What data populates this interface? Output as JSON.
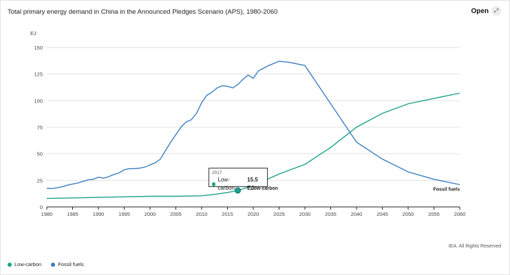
{
  "header": {
    "title": "Total primary energy demand in China in the Announced Pledges Scenario (APS), 1980-2060",
    "open_label": "Open",
    "open_icon": "expand-arrows-icon"
  },
  "footer": {
    "credit": "IEA. All Rights Reserved"
  },
  "legend": [
    {
      "label": "Low-carbon",
      "color": "#1aa18d"
    },
    {
      "label": "Fossil fuels",
      "color": "#3a7ec0"
    }
  ],
  "tooltip": {
    "year": "2017",
    "series": "Low-carbon",
    "value": "15.5 EJ"
  },
  "chart_data": {
    "type": "line",
    "title": "Total primary energy demand in China in the Announced Pledges Scenario (APS), 1980-2060",
    "ylabel": "EJ",
    "xlabel": "",
    "ylim": [
      0,
      150
    ],
    "xlim": [
      1980,
      2060
    ],
    "yticks": [
      0,
      25,
      50,
      75,
      100,
      125,
      150
    ],
    "xticks": [
      1980,
      1985,
      1990,
      1995,
      2000,
      2005,
      2010,
      2015,
      2020,
      2025,
      2030,
      2035,
      2040,
      2045,
      2050,
      2055,
      2060
    ],
    "grid": "horizontal",
    "legend_position": "bottom-left",
    "series": [
      {
        "name": "Low-carbon",
        "color": "#1aa18d",
        "end_label": "Low-carbon",
        "points": [
          [
            1980,
            8
          ],
          [
            1985,
            8.5
          ],
          [
            1990,
            9
          ],
          [
            1995,
            9.5
          ],
          [
            2000,
            10
          ],
          [
            2005,
            10
          ],
          [
            2010,
            10.5
          ],
          [
            2012,
            11.5
          ],
          [
            2015,
            13.5
          ],
          [
            2017,
            15.5
          ],
          [
            2020,
            20
          ],
          [
            2025,
            31
          ],
          [
            2030,
            40
          ],
          [
            2035,
            56
          ],
          [
            2040,
            75
          ],
          [
            2045,
            88
          ],
          [
            2050,
            97
          ],
          [
            2055,
            102
          ],
          [
            2060,
            107
          ]
        ]
      },
      {
        "name": "Fossil fuels",
        "color": "#3a7ec0",
        "end_label": "Fossil fuels",
        "points": [
          [
            1980,
            17.5
          ],
          [
            1981,
            17.3
          ],
          [
            1982,
            18
          ],
          [
            1983,
            19
          ],
          [
            1984,
            20.5
          ],
          [
            1985,
            21.5
          ],
          [
            1986,
            22.5
          ],
          [
            1987,
            24
          ],
          [
            1988,
            25.5
          ],
          [
            1989,
            26
          ],
          [
            1990,
            28
          ],
          [
            1991,
            27
          ],
          [
            1992,
            28.5
          ],
          [
            1993,
            30.5
          ],
          [
            1994,
            32
          ],
          [
            1995,
            35
          ],
          [
            1996,
            36
          ],
          [
            1997,
            36
          ],
          [
            1998,
            36.5
          ],
          [
            1999,
            37.5
          ],
          [
            2000,
            39.5
          ],
          [
            2001,
            41.5
          ],
          [
            2002,
            45
          ],
          [
            2003,
            53
          ],
          [
            2004,
            61
          ],
          [
            2005,
            68
          ],
          [
            2006,
            75
          ],
          [
            2007,
            80
          ],
          [
            2008,
            82
          ],
          [
            2009,
            88
          ],
          [
            2010,
            98
          ],
          [
            2011,
            105
          ],
          [
            2012,
            108
          ],
          [
            2013,
            112
          ],
          [
            2014,
            114
          ],
          [
            2015,
            113.5
          ],
          [
            2016,
            112
          ],
          [
            2017,
            115
          ],
          [
            2018,
            120
          ],
          [
            2019,
            124
          ],
          [
            2020,
            121
          ],
          [
            2021,
            128
          ],
          [
            2023,
            133
          ],
          [
            2025,
            137
          ],
          [
            2027,
            136
          ],
          [
            2030,
            133
          ],
          [
            2035,
            97
          ],
          [
            2040,
            61
          ],
          [
            2045,
            45
          ],
          [
            2050,
            33
          ],
          [
            2055,
            26
          ],
          [
            2060,
            21
          ]
        ]
      }
    ],
    "highlight": {
      "series": "Low-carbon",
      "x": 2017,
      "y": 15.5
    }
  }
}
